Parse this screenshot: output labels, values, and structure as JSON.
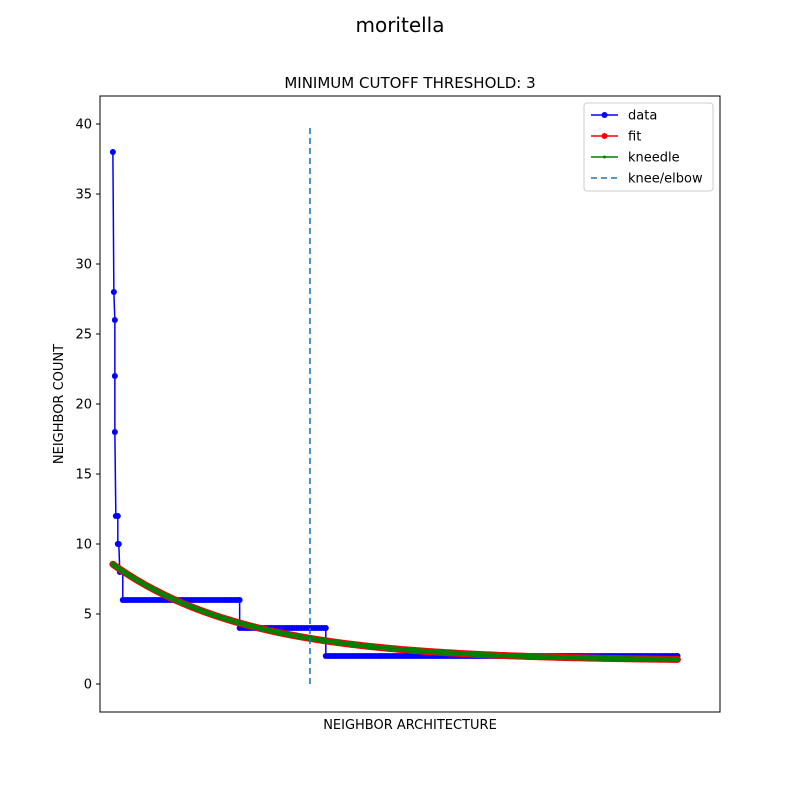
{
  "chart_data": {
    "type": "line",
    "suptitle": "moritella",
    "title": "MINIMUM CUTOFF THRESHOLD: 3",
    "xlabel": "NEIGHBOR ARCHITECTURE",
    "ylabel": "NEIGHBOR COUNT",
    "xlim": [
      -1.3,
      61.3
    ],
    "ylim": [
      -2,
      42
    ],
    "xticks_visible": false,
    "yticks": [
      0,
      5,
      10,
      15,
      20,
      25,
      30,
      35,
      40
    ],
    "grid": false,
    "legend_position": "top-right",
    "series": [
      {
        "name": "data",
        "color": "#0000ff",
        "marker": "circle",
        "step_points": [
          [
            0,
            38
          ],
          [
            0.1,
            28
          ],
          [
            0.2,
            26
          ],
          [
            0.2,
            22
          ],
          [
            0.2,
            18
          ],
          [
            0.3,
            12
          ],
          [
            0.5,
            12
          ],
          [
            0.5,
            10
          ],
          [
            0.6,
            10
          ],
          [
            0.7,
            8
          ],
          [
            1.0,
            8
          ],
          [
            1.0,
            6
          ],
          [
            12.8,
            6
          ],
          [
            12.8,
            4
          ],
          [
            21.5,
            4
          ],
          [
            21.5,
            2
          ],
          [
            57,
            2
          ]
        ]
      },
      {
        "name": "fit",
        "color": "#ff0000",
        "marker": "circle",
        "curve": {
          "a": 6.9,
          "b": 0.0732,
          "c": 1.65,
          "x_start": 0,
          "x_end": 57
        }
      },
      {
        "name": "kneedle",
        "color": "#008000",
        "marker": "point",
        "curve": {
          "a": 6.9,
          "b": 0.0732,
          "c": 1.65,
          "x_start": 0,
          "x_end": 57
        }
      },
      {
        "name": "knee/elbow",
        "color": "#1f77b4",
        "style": "dashed",
        "vline": {
          "x": 19.9,
          "y_min": 0,
          "y_max": 40
        }
      }
    ]
  }
}
